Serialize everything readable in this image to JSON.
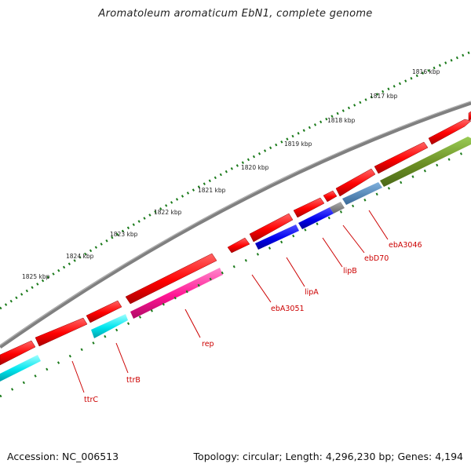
{
  "title": "Aromatoleum aromaticum EbN1, complete genome",
  "footer": {
    "accession_label": "Accession:",
    "accession": "NC_006513",
    "topology_label": "Topology:",
    "topology": "circular",
    "length_label": "Length:",
    "length": "4,296,230 bp",
    "genes_label": "Genes:",
    "genes": "4,194"
  },
  "ruler": {
    "unit": "kbp",
    "labels": [
      "1816 kbp",
      "1817 kbp",
      "1818 kbp",
      "1819 kbp",
      "1820 kbp",
      "1821 kbp",
      "1822 kbp",
      "1823 kbp",
      "1824 kbp",
      "1825 kbp"
    ]
  },
  "colors": {
    "backbone": "#808080",
    "ruler": "#1a7a1a",
    "gene_forward": "#ff0000",
    "label": "#cc0000"
  },
  "genes": [
    {
      "name": "ttrC",
      "color": "#00e5ee"
    },
    {
      "name": "ttrB",
      "color": "#00e5ee"
    },
    {
      "name": "rep",
      "color": "#ff1493"
    },
    {
      "name": "ebA3051",
      "color": "#ff0000"
    },
    {
      "name": "lipA",
      "color": "#0000ee"
    },
    {
      "name": "lipB",
      "color": "#0000ee"
    },
    {
      "name": "ebD70",
      "color": "#808080"
    },
    {
      "name": "ebA3046",
      "color": "#4682b4"
    }
  ]
}
